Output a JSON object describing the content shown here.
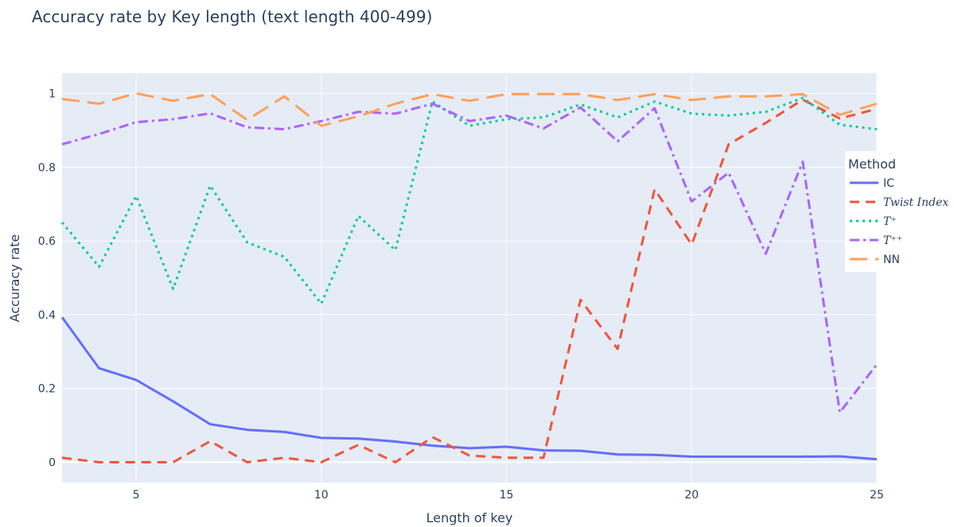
{
  "chart_data": {
    "type": "line",
    "title": "Accuracy rate by Key length (text length 400-499)",
    "xlabel": "Length of key",
    "ylabel": "Accuracy rate",
    "xlim": [
      3,
      25
    ],
    "ylim": [
      -0.055,
      1.055
    ],
    "xticks": [
      5,
      10,
      15,
      20,
      25
    ],
    "yticks": [
      0,
      0.2,
      0.4,
      0.6,
      0.8,
      1
    ],
    "ytick_labels": [
      "0",
      "0.2",
      "0.4",
      "0.6",
      "0.8",
      "1"
    ],
    "grid": true,
    "legend": {
      "title": "Method",
      "position": "right"
    },
    "x": [
      3,
      4,
      5,
      6,
      7,
      8,
      9,
      10,
      11,
      12,
      13,
      14,
      15,
      16,
      17,
      18,
      19,
      20,
      21,
      22,
      23,
      24,
      25
    ],
    "series": [
      {
        "name": "IC",
        "color": "#636efa",
        "dash": "solid",
        "values": [
          0.393,
          0.255,
          0.223,
          0.165,
          0.103,
          0.088,
          0.082,
          0.066,
          0.064,
          0.056,
          0.045,
          0.038,
          0.042,
          0.032,
          0.031,
          0.021,
          0.02,
          0.015,
          0.015,
          0.015,
          0.015,
          0.016,
          0.008
        ]
      },
      {
        "name": "Twist Index",
        "color": "#ef553b",
        "dash": "dash",
        "values": [
          0.012,
          0.0,
          0.0,
          0.0,
          0.057,
          0.0,
          0.012,
          0.0,
          0.047,
          0.0,
          0.068,
          0.018,
          0.012,
          0.012,
          0.44,
          0.307,
          0.74,
          0.59,
          0.862,
          0.92,
          0.983,
          0.932,
          0.958
        ]
      },
      {
        "name": "T⁺",
        "color": "#00cc96",
        "dash": "dot",
        "values": [
          0.65,
          0.53,
          0.722,
          0.47,
          0.75,
          0.596,
          0.557,
          0.43,
          0.668,
          0.575,
          0.978,
          0.912,
          0.93,
          0.935,
          0.97,
          0.935,
          0.978,
          0.945,
          0.94,
          0.95,
          0.988,
          0.915,
          0.903
        ]
      },
      {
        "name": "T⁺⁺",
        "color": "#ab63fa",
        "dash": "dashdot",
        "values": [
          0.862,
          0.89,
          0.922,
          0.93,
          0.946,
          0.908,
          0.903,
          0.925,
          0.95,
          0.945,
          0.972,
          0.925,
          0.94,
          0.905,
          0.962,
          0.87,
          0.96,
          0.707,
          0.785,
          0.565,
          0.815,
          0.135,
          0.265
        ]
      },
      {
        "name": "NN",
        "color": "#ffa15a",
        "dash": "longdash",
        "values": [
          0.985,
          0.972,
          1.0,
          0.98,
          0.998,
          0.928,
          0.992,
          0.912,
          0.938,
          0.972,
          0.998,
          0.98,
          0.998,
          0.998,
          0.998,
          0.982,
          0.998,
          0.982,
          0.992,
          0.992,
          0.998,
          0.942,
          0.972
        ]
      }
    ]
  }
}
